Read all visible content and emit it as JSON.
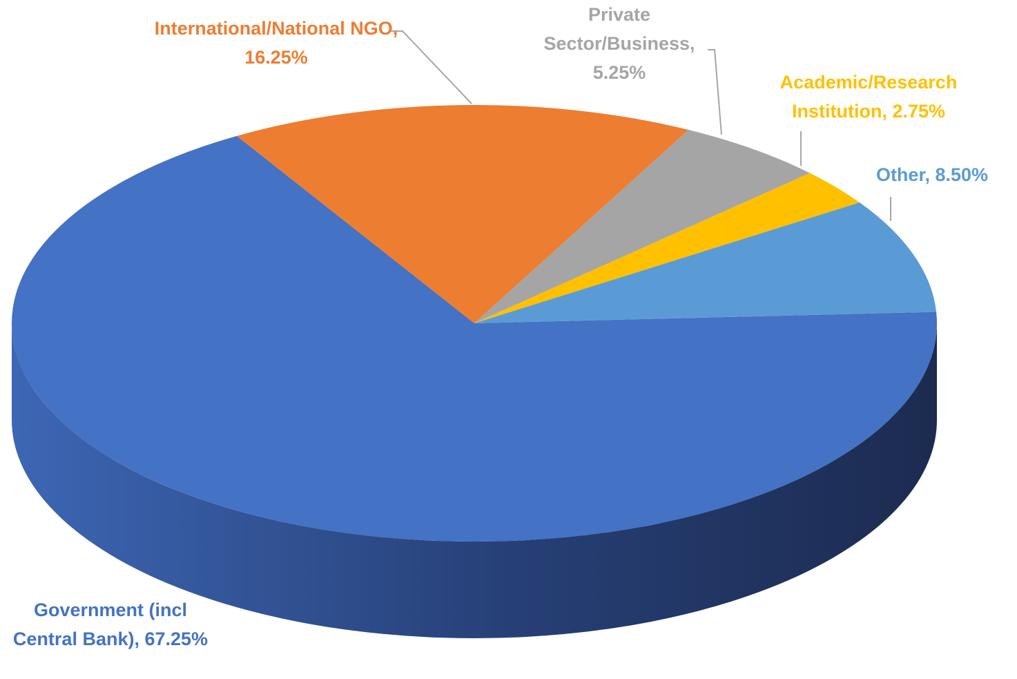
{
  "chart_data": {
    "type": "pie",
    "categories": [
      "Government (incl Central Bank)",
      "International/National NGO",
      "Private Sector/Business",
      "Academic/Research Institution",
      "Other"
    ],
    "values": [
      67.25,
      16.25,
      5.25,
      2.75,
      8.5
    ],
    "value_labels": [
      "67.25%",
      "16.25%",
      "5.25%",
      "2.75%",
      "8.50%"
    ],
    "label_separator": ", ",
    "colors": [
      "#4472c4",
      "#ed7d31",
      "#a5a5a5",
      "#ffc000",
      "#5b9bd5"
    ]
  }
}
